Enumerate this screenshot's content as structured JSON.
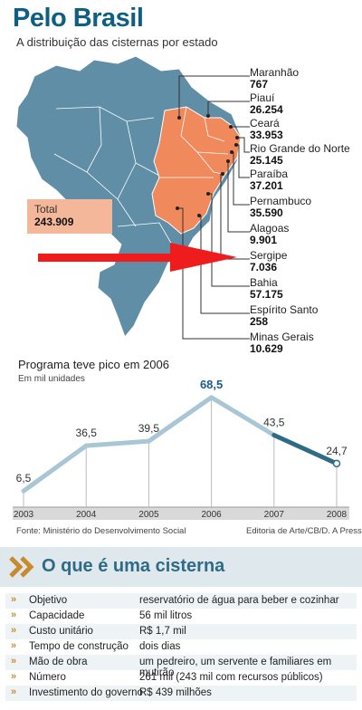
{
  "header": {
    "title": "Pelo Brasil",
    "subtitle": "A distribuição das cisternas por estado"
  },
  "map": {
    "total_label": "Total",
    "total_value": "243.909",
    "states": [
      {
        "name": "Maranhão",
        "value": "767"
      },
      {
        "name": "Piauí",
        "value": "26.254"
      },
      {
        "name": "Ceará",
        "value": "33.953"
      },
      {
        "name": "Rio Grande do Norte",
        "value": "25.145"
      },
      {
        "name": "Paraíba",
        "value": "37.201"
      },
      {
        "name": "Pernambuco",
        "value": "35.590"
      },
      {
        "name": "Alagoas",
        "value": "9.901"
      },
      {
        "name": "Sergipe",
        "value": "7.036"
      },
      {
        "name": "Bahia",
        "value": "57.175"
      },
      {
        "name": "Espírito Santo",
        "value": "258"
      },
      {
        "name": "Minas Gerais",
        "value": "10.629"
      }
    ],
    "colors": {
      "brazil": "#5f8ea6",
      "highlight": "#f08a5d",
      "arrow": "#ee1c1c"
    }
  },
  "chart_data": {
    "type": "line",
    "title": "Programa teve pico em 2006",
    "subtitle": "Em mil unidades",
    "x": [
      "2003",
      "2004",
      "2005",
      "2006",
      "2007",
      "2008"
    ],
    "values": [
      6.5,
      36.5,
      39.5,
      68.5,
      43.5,
      24.7
    ],
    "value_labels": [
      "6,5",
      "36,5",
      "39,5",
      "68,5",
      "43,5",
      "24,7"
    ],
    "highlight_label": "68,5",
    "ylim": [
      0,
      75
    ],
    "colors": {
      "line": "#a9c6d4",
      "highlight_segment": "#2d6b86",
      "peak_label": "#1b5b88",
      "axis_band": "#b7b7b7"
    }
  },
  "footer": {
    "source": "Fonte: Ministério do Desenvolvimento Social",
    "credit": "Editoria de Arte/CB/D. A Press"
  },
  "info": {
    "section_title": "O que é uma cisterna",
    "rows": [
      {
        "key": "Objetivo",
        "value": "reservatório de água para beber e cozinhar"
      },
      {
        "key": "Capacidade",
        "value": "56 mil litros"
      },
      {
        "key": "Custo unitário",
        "value": "R$ 1,7 mil"
      },
      {
        "key": "Tempo de construção",
        "value": "dois dias"
      },
      {
        "key": "Mão de obra",
        "value": "um pedreiro, um servente e familiares em mutirão"
      },
      {
        "key": "Número",
        "value": "261 mil (243 mil com recursos públicos)"
      },
      {
        "key": "Investimento do governo",
        "value": "R$ 439 milhões"
      }
    ]
  }
}
